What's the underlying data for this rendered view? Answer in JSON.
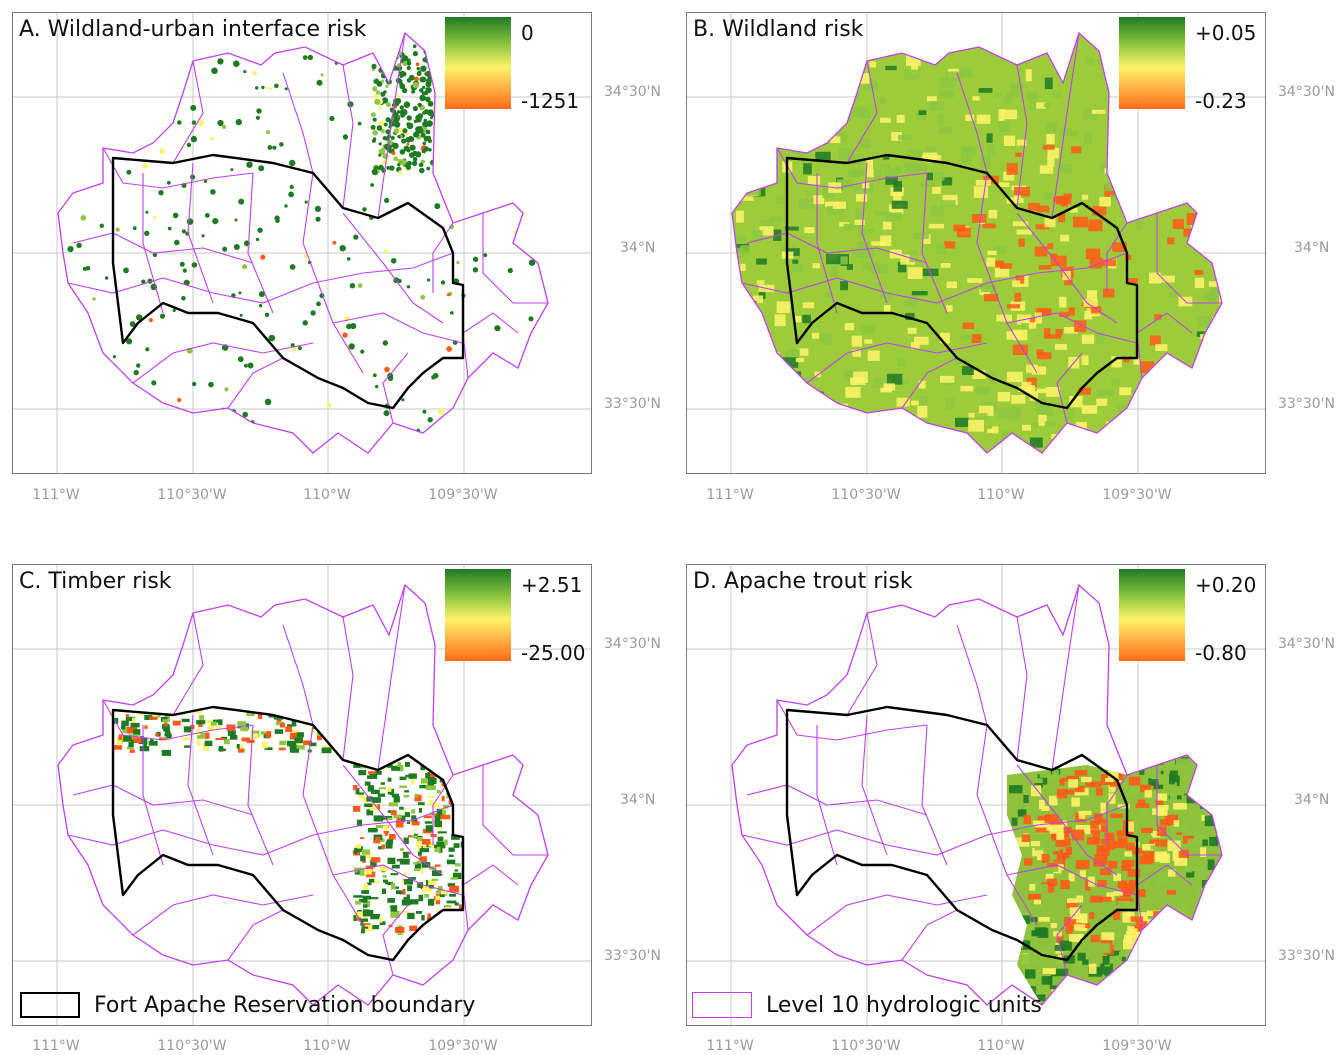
{
  "panels": [
    {
      "id": "A",
      "title": "A. Wildland-urban interface risk",
      "scale_max": "0",
      "scale_min": "-1251"
    },
    {
      "id": "B",
      "title": "B. Wildland risk",
      "scale_max": "+0.05",
      "scale_min": "-0.23"
    },
    {
      "id": "C",
      "title": "C. Timber risk",
      "scale_max": "+2.51",
      "scale_min": "-25.00"
    },
    {
      "id": "D",
      "title": "D. Apache trout risk",
      "scale_max": "+0.20",
      "scale_min": "-0.80"
    }
  ],
  "lat_labels": [
    "34°30'N",
    "34°N",
    "33°30'N"
  ],
  "lon_labels": [
    "111°W",
    "110°30'W",
    "110°W",
    "109°30'W"
  ],
  "legend": {
    "boundary": "Fort Apache Reservation boundary",
    "hydro": "Level 10 hydrologic units"
  },
  "colors": {
    "boundary": "#000000",
    "hydro": "#c040ee",
    "grid": "#c8c8c8",
    "high": "#1f7a24",
    "mid_high": "#8dc63f",
    "mid": "#fff36a",
    "low": "#ff5a18"
  }
}
